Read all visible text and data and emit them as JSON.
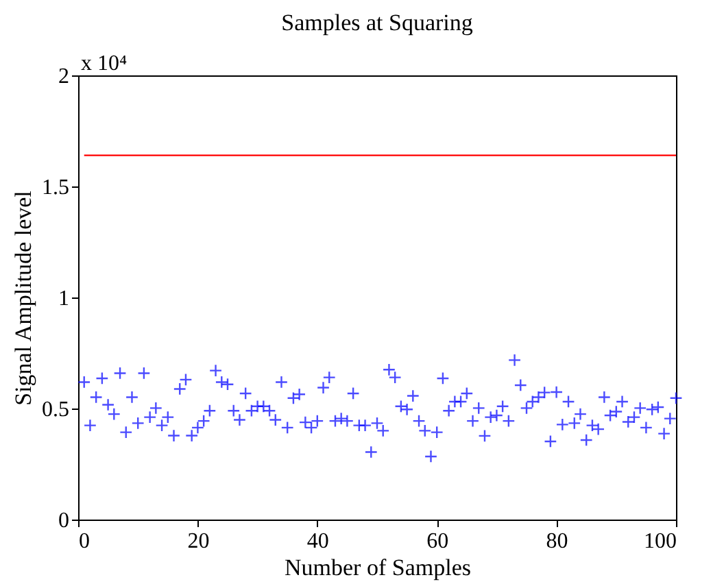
{
  "chart_data": {
    "type": "scatter",
    "title": "Samples at Squaring",
    "xlabel": "Number of Samples",
    "ylabel": "Signal Amplitude level",
    "annotations": [
      "x 10⁴"
    ],
    "xlim": [
      0,
      100
    ],
    "xticks": [
      0,
      20,
      40,
      60,
      80,
      100
    ],
    "ylim": [
      0,
      2
    ],
    "yticks": [
      0,
      0.5,
      1,
      1.5,
      2
    ],
    "grid": false,
    "series": [
      {
        "color": "#0000ff",
        "marker": "cross",
        "x": [
          1,
          2,
          3,
          4,
          5,
          6,
          7,
          8,
          9,
          10,
          11,
          12,
          13,
          14,
          15,
          16,
          17,
          18,
          19,
          20,
          21,
          22,
          23,
          24,
          25,
          26,
          27,
          28,
          29,
          30,
          31,
          32,
          33,
          34,
          35,
          36,
          37,
          38,
          39,
          40,
          41,
          42,
          43,
          44,
          45,
          46,
          47,
          48,
          49,
          50,
          51,
          52,
          53,
          54,
          55,
          56,
          57,
          58,
          59,
          60,
          61,
          62,
          63,
          64,
          65,
          66,
          67,
          68,
          69,
          70,
          71,
          72,
          73,
          74,
          75,
          76,
          77,
          78,
          79,
          80,
          81,
          82,
          83,
          84,
          85,
          86,
          87,
          88,
          89,
          90,
          91,
          92,
          93,
          94,
          95,
          96,
          97,
          98,
          99,
          100
        ],
        "values": [
          0.619,
          0.424,
          0.551,
          0.636,
          0.517,
          0.475,
          0.659,
          0.393,
          0.551,
          0.434,
          0.659,
          0.461,
          0.502,
          0.424,
          0.461,
          0.378,
          0.588,
          0.63,
          0.378,
          0.414,
          0.444,
          0.49,
          0.671,
          0.619,
          0.609,
          0.49,
          0.449,
          0.568,
          0.49,
          0.51,
          0.51,
          0.49,
          0.449,
          0.619,
          0.414,
          0.547,
          0.564,
          0.438,
          0.414,
          0.444,
          0.594,
          0.64,
          0.444,
          0.455,
          0.444,
          0.568,
          0.424,
          0.424,
          0.304,
          0.434,
          0.4,
          0.675,
          0.64,
          0.51,
          0.496,
          0.557,
          0.444,
          0.4,
          0.284,
          0.393,
          0.636,
          0.49,
          0.531,
          0.531,
          0.568,
          0.444,
          0.502,
          0.377,
          0.461,
          0.469,
          0.51,
          0.444,
          0.718,
          0.605,
          0.502,
          0.531,
          0.551,
          0.572,
          0.352,
          0.574,
          0.428,
          0.531,
          0.434,
          0.475,
          0.358,
          0.424,
          0.407,
          0.551,
          0.469,
          0.486,
          0.531,
          0.44,
          0.461,
          0.502,
          0.414,
          0.496,
          0.506,
          0.387,
          0.455,
          0.547
        ]
      },
      {
        "type": "line",
        "color": "#ff0000",
        "x": [
          1,
          100
        ],
        "values": [
          1.64,
          1.64
        ]
      }
    ]
  }
}
